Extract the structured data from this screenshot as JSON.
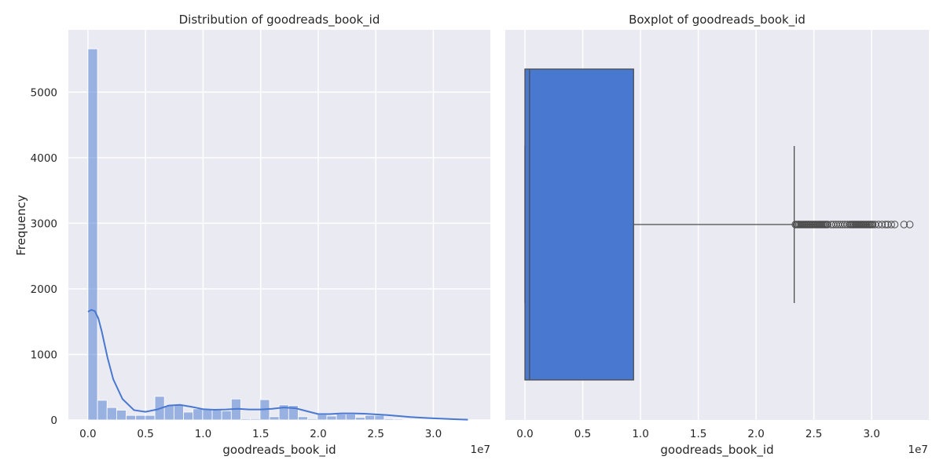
{
  "chart_data": [
    {
      "type": "bar",
      "subtype": "histogram_with_kde",
      "title": "Distribution of goodreads_book_id",
      "xlabel": "goodreads_book_id",
      "ylabel": "Frequency",
      "x_scale_label": "1e7",
      "xlim": [
        -0.17,
        3.495
      ],
      "ylim": [
        0,
        5950
      ],
      "xticks": [
        0.0,
        0.5,
        1.0,
        1.5,
        2.0,
        2.5,
        3.0
      ],
      "xtick_labels": [
        "0.0",
        "0.5",
        "1.0",
        "1.5",
        "2.0",
        "2.5",
        "3.0"
      ],
      "yticks": [
        0,
        1000,
        2000,
        3000,
        4000,
        5000
      ],
      "ytick_labels": [
        "0",
        "1000",
        "2000",
        "3000",
        "4000",
        "5000"
      ],
      "grid": true,
      "bar_color": "#4878d0",
      "bin_edges": [
        0.0,
        0.083,
        0.166,
        0.249,
        0.332,
        0.415,
        0.498,
        0.581,
        0.664,
        0.747,
        0.83,
        0.913,
        0.996,
        1.079,
        1.162,
        1.245,
        1.328,
        1.411,
        1.494,
        1.577,
        1.66,
        1.743,
        1.826,
        1.909,
        1.992,
        2.075,
        2.158,
        2.241,
        2.324,
        2.407,
        2.49,
        2.573,
        2.656,
        2.739,
        2.822,
        2.905,
        2.988,
        3.071,
        3.154,
        3.237,
        3.32
      ],
      "values": [
        5660,
        300,
        190,
        150,
        70,
        70,
        70,
        360,
        220,
        230,
        120,
        170,
        170,
        150,
        140,
        320,
        20,
        20,
        310,
        50,
        230,
        220,
        50,
        20,
        80,
        60,
        90,
        90,
        40,
        70,
        70,
        20,
        15,
        10,
        10,
        5,
        5,
        5,
        3,
        2
      ],
      "kde": {
        "x": [
          0.0,
          0.03,
          0.06,
          0.09,
          0.12,
          0.17,
          0.22,
          0.3,
          0.4,
          0.5,
          0.6,
          0.7,
          0.8,
          0.9,
          1.0,
          1.1,
          1.2,
          1.3,
          1.4,
          1.5,
          1.6,
          1.7,
          1.8,
          1.9,
          2.0,
          2.1,
          2.2,
          2.3,
          2.4,
          2.5,
          2.6,
          2.7,
          2.8,
          2.9,
          3.0,
          3.1,
          3.2,
          3.3
        ],
        "y": [
          1650,
          1680,
          1660,
          1550,
          1350,
          950,
          620,
          320,
          150,
          125,
          160,
          220,
          230,
          200,
          165,
          155,
          160,
          170,
          160,
          160,
          170,
          190,
          180,
          135,
          90,
          90,
          100,
          100,
          95,
          85,
          75,
          60,
          45,
          35,
          25,
          18,
          10,
          5
        ]
      }
    },
    {
      "type": "boxplot",
      "title": "Boxplot of goodreads_book_id",
      "xlabel": "goodreads_book_id",
      "x_scale_label": "1e7",
      "xlim": [
        -0.17,
        3.495
      ],
      "xticks": [
        0.0,
        0.5,
        1.0,
        1.5,
        2.0,
        2.5,
        3.0
      ],
      "xtick_labels": [
        "0.0",
        "0.5",
        "1.0",
        "1.5",
        "2.0",
        "2.5",
        "3.0"
      ],
      "grid": true,
      "box_color": "#4878d0",
      "whisker_low": 0.0,
      "q1": 0.0,
      "median": 0.04,
      "q3": 0.94,
      "whisker_high": 2.33,
      "outliers": [
        2.34,
        2.35,
        2.36,
        2.37,
        2.38,
        2.39,
        2.4,
        2.41,
        2.42,
        2.43,
        2.44,
        2.45,
        2.46,
        2.47,
        2.48,
        2.49,
        2.5,
        2.51,
        2.52,
        2.53,
        2.54,
        2.55,
        2.56,
        2.57,
        2.58,
        2.59,
        2.6,
        2.61,
        2.62,
        2.65,
        2.67,
        2.69,
        2.71,
        2.73,
        2.75,
        2.77,
        2.79,
        2.81,
        2.82,
        2.83,
        2.84,
        2.85,
        2.86,
        2.87,
        2.88,
        2.89,
        2.9,
        2.91,
        2.92,
        2.93,
        2.94,
        2.95,
        2.96,
        2.97,
        2.98,
        2.99,
        3.0,
        3.01,
        3.03,
        3.06,
        3.09,
        3.12,
        3.14,
        3.17,
        3.2,
        3.28,
        3.33
      ]
    }
  ]
}
